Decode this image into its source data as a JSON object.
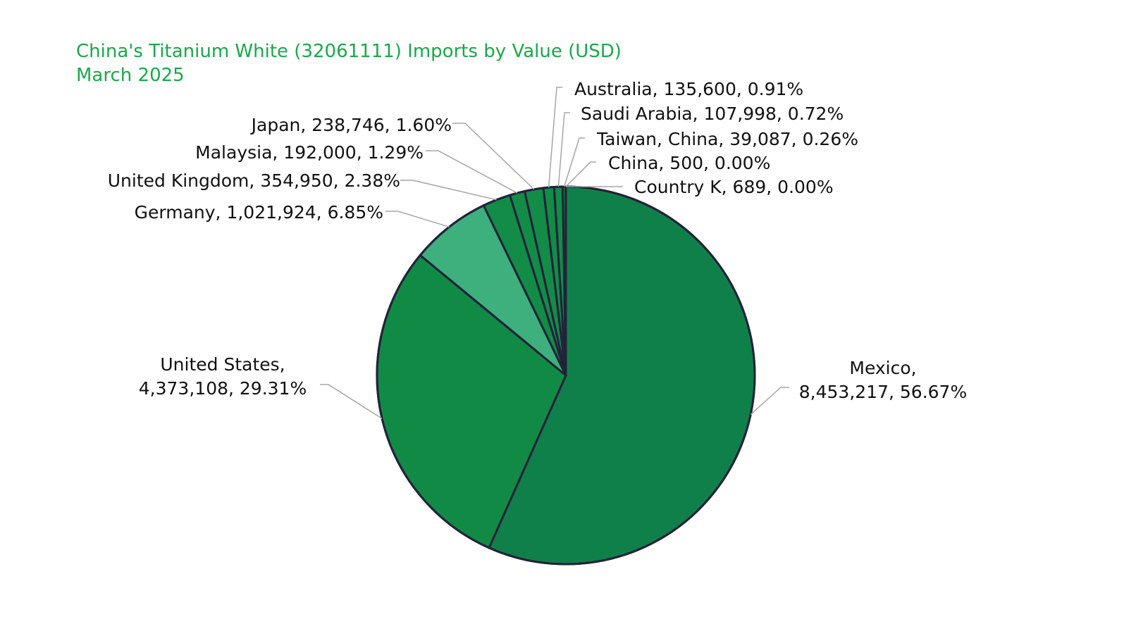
{
  "chart_data": {
    "type": "pie",
    "title": "China's Titanium White (32061111) Imports by Value (USD)",
    "subtitle": "March 2025",
    "slices": [
      {
        "label": "Mexico",
        "value": 8453217,
        "value_text": "8,453,217",
        "percent": "56.67%",
        "color": "#10804a"
      },
      {
        "label": "United States",
        "value": 4373108,
        "value_text": "4,373,108",
        "percent": "29.31%",
        "color": "#118a46"
      },
      {
        "label": "Germany",
        "value": 1021924,
        "value_text": "1,021,924",
        "percent": "6.85%",
        "color": "#3db07d"
      },
      {
        "label": "United Kingdom",
        "value": 354950,
        "value_text": "354,950",
        "percent": "2.38%",
        "color": "#128c47"
      },
      {
        "label": "Malaysia",
        "value": 192000,
        "value_text": "192,000",
        "percent": "1.29%",
        "color": "#128c47"
      },
      {
        "label": "Japan",
        "value": 238746,
        "value_text": "238,746",
        "percent": "1.60%",
        "color": "#128c47"
      },
      {
        "label": "Australia",
        "value": 135600,
        "value_text": "135,600",
        "percent": "0.91%",
        "color": "#128c47"
      },
      {
        "label": "Saudi Arabia",
        "value": 107998,
        "value_text": "107,998",
        "percent": "0.72%",
        "color": "#128c47"
      },
      {
        "label": "Taiwan,  China",
        "value": 39087,
        "value_text": "39,087",
        "percent": "0.26%",
        "color": "#128c47"
      },
      {
        "label": "China",
        "value": 500,
        "value_text": "500",
        "percent": "0.00%",
        "color": "#128c47"
      },
      {
        "label": "Country K",
        "value": 689,
        "value_text": "689",
        "percent": "0.00%",
        "color": "#128c47"
      }
    ],
    "label_text": {
      "Mexico": [
        "Mexico,",
        "8,453,217, 56.67%"
      ],
      "United States": [
        "United States,",
        "4,373,108, 29.31%"
      ],
      "Germany": [
        "Germany, 1,021,924, 6.85%"
      ],
      "United Kingdom": [
        "United Kingdom, 354,950, 2.38%"
      ],
      "Malaysia": [
        "Malaysia, 192,000, 1.29%"
      ],
      "Japan": [
        "Japan, 238,746, 1.60%"
      ],
      "Australia": [
        "Australia, 135,600, 0.91%"
      ],
      "Saudi Arabia": [
        "Saudi Arabia, 107,998, 0.72%"
      ],
      "Taiwan,  China": [
        "Taiwan,  China, 39,087, 0.26%"
      ],
      "China": [
        "China, 500, 0.00%"
      ],
      "Country K": [
        "Country K, 689, 0.00%"
      ]
    },
    "legend": "none",
    "colors": {
      "title": "#1aa84a",
      "outline": "#22223a",
      "leader": "#a6a6a6",
      "label": "#111111"
    }
  }
}
